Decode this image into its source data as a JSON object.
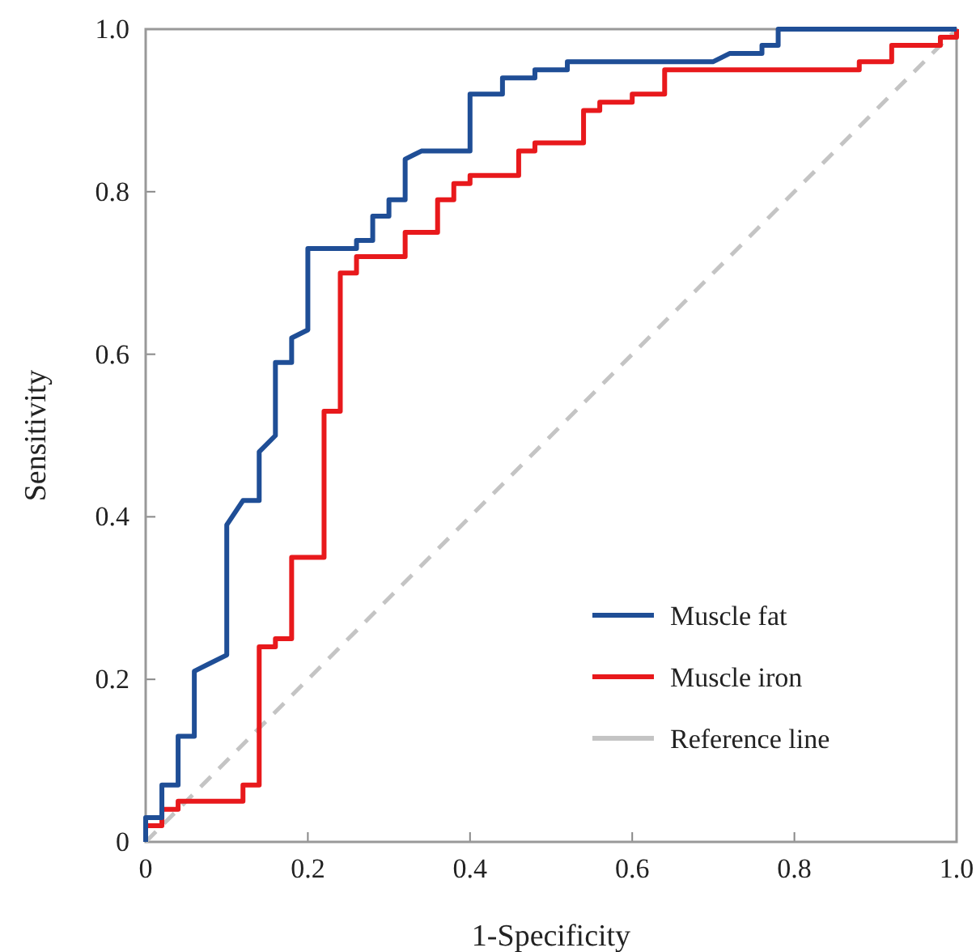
{
  "chart_data": {
    "type": "line",
    "xlabel": "1-Specificity",
    "ylabel": "Sensitivity",
    "xlim": [
      0,
      1
    ],
    "ylim": [
      0,
      1
    ],
    "xticks": [
      0,
      0.2,
      0.4,
      0.6,
      0.8,
      {
        "value": 1,
        "label": "1.0"
      }
    ],
    "yticks": [
      0,
      0.2,
      0.4,
      0.6,
      0.8,
      {
        "value": 1,
        "label": "1.0"
      }
    ],
    "legend": "bottom right",
    "grid": false,
    "marker": "none",
    "series": [
      {
        "name": "Muscle fat",
        "color": "#1f4e96",
        "line_style": "solid",
        "x": [
          0,
          0,
          0.02,
          0.02,
          0.04,
          0.04,
          0.06,
          0.06,
          0.1,
          0.1,
          0.12,
          0.14,
          0.14,
          0.16,
          0.16,
          0.18,
          0.18,
          0.2,
          0.2,
          0.26,
          0.26,
          0.28,
          0.28,
          0.3,
          0.3,
          0.32,
          0.32,
          0.34,
          0.4,
          0.4,
          0.44,
          0.44,
          0.48,
          0.48,
          0.52,
          0.52,
          0.7,
          0.72,
          0.76,
          0.76,
          0.78,
          0.78,
          1
        ],
        "values": [
          0,
          0.03,
          0.03,
          0.07,
          0.07,
          0.13,
          0.13,
          0.21,
          0.23,
          0.39,
          0.42,
          0.42,
          0.48,
          0.5,
          0.59,
          0.59,
          0.62,
          0.63,
          0.73,
          0.73,
          0.74,
          0.74,
          0.77,
          0.77,
          0.79,
          0.79,
          0.84,
          0.85,
          0.85,
          0.92,
          0.92,
          0.94,
          0.94,
          0.95,
          0.95,
          0.96,
          0.96,
          0.97,
          0.97,
          0.98,
          0.98,
          1,
          1
        ]
      },
      {
        "name": "Muscle iron",
        "color": "#e8191c",
        "line_style": "solid",
        "x": [
          0,
          0,
          0.02,
          0.02,
          0.04,
          0.04,
          0.12,
          0.12,
          0.14,
          0.14,
          0.16,
          0.16,
          0.18,
          0.18,
          0.22,
          0.22,
          0.24,
          0.24,
          0.26,
          0.26,
          0.32,
          0.32,
          0.36,
          0.36,
          0.38,
          0.38,
          0.4,
          0.4,
          0.46,
          0.46,
          0.48,
          0.48,
          0.54,
          0.54,
          0.56,
          0.56,
          0.6,
          0.6,
          0.64,
          0.64,
          0.88,
          0.88,
          0.92,
          0.92,
          0.98,
          0.98,
          1,
          1
        ],
        "values": [
          0,
          0.02,
          0.02,
          0.04,
          0.04,
          0.05,
          0.05,
          0.07,
          0.07,
          0.24,
          0.24,
          0.25,
          0.25,
          0.35,
          0.35,
          0.53,
          0.53,
          0.7,
          0.7,
          0.72,
          0.72,
          0.75,
          0.75,
          0.79,
          0.79,
          0.81,
          0.81,
          0.82,
          0.82,
          0.85,
          0.85,
          0.86,
          0.86,
          0.9,
          0.9,
          0.91,
          0.91,
          0.92,
          0.92,
          0.95,
          0.95,
          0.96,
          0.96,
          0.98,
          0.98,
          0.99,
          0.99,
          1
        ]
      },
      {
        "name": "Reference line",
        "color": "#c4c4c4",
        "line_style": "dashed",
        "x": [
          0,
          1
        ],
        "values": [
          0,
          1
        ]
      }
    ]
  }
}
